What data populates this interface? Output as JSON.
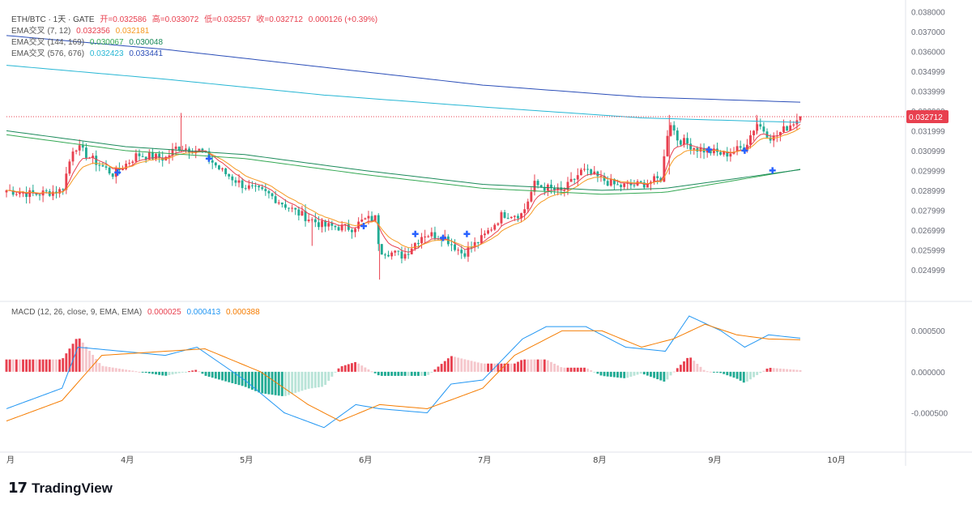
{
  "header": {
    "symbol": "ETH/BTC · 1天 · GATE",
    "open": "开=0.032586",
    "high": "高=0.033072",
    "low": "低=0.032557",
    "close": "收=0.032712",
    "change": "0.000126 (+0.39%)"
  },
  "ema_legends": [
    {
      "label": "EMA交叉 (7, 12)",
      "v1": "0.032356",
      "v2": "0.032181",
      "c1": "#e8404f",
      "c2": "#f59a23"
    },
    {
      "label": "EMA交叉 (144, 169)",
      "v1": "0.030067",
      "v2": "0.030048",
      "c1": "#34a853",
      "c2": "#1b8a5a"
    },
    {
      "label": "EMA交叉 (576, 676)",
      "v1": "0.032423",
      "v2": "0.033441",
      "c1": "#26b6d4",
      "c2": "#2b4eb8"
    }
  ],
  "macd_legend": {
    "label": "MACD (12, 26, close, 9, EMA, EMA)",
    "v1": "0.000025",
    "v2": "0.000413",
    "v3": "0.000388"
  },
  "price_tag": "0.032712",
  "brand": "TradingView",
  "colors": {
    "up": "#e8404f",
    "down": "#22ab94",
    "up_light": "#f5c6cb",
    "down_light": "#b9e4d8",
    "cross_marker": "#2962ff"
  },
  "chart_data": {
    "type": "candlestick",
    "title": "ETH/BTC · 1天 · GATE",
    "x_tick_labels": [
      "月",
      "4月",
      "5月",
      "6月",
      "7月",
      "8月",
      "9月",
      "10月"
    ],
    "price_axis": {
      "ticks": [
        "0.038000",
        "0.037000",
        "0.036000",
        "0.034999",
        "0.033999",
        "0.032999",
        "0.031999",
        "0.030999",
        "0.029999",
        "0.028999",
        "0.027999",
        "0.026999",
        "0.025999",
        "0.024999"
      ],
      "ylim": [
        0.0243,
        0.0381
      ]
    },
    "macd_axis": {
      "ticks": [
        "0.000500",
        "0.000000",
        "-0.000500"
      ],
      "ylim": [
        -0.00088,
        0.00068
      ]
    },
    "candle_keypoints": [
      {
        "t": 0,
        "c": 0.029
      },
      {
        "t": 0.035,
        "c": 0.0288
      },
      {
        "t": 0.07,
        "c": 0.029
      },
      {
        "t": 0.085,
        "c": 0.0313
      },
      {
        "t": 0.11,
        "c": 0.0305
      },
      {
        "t": 0.135,
        "c": 0.0298
      },
      {
        "t": 0.165,
        "c": 0.0308
      },
      {
        "t": 0.2,
        "c": 0.0306
      },
      {
        "t": 0.215,
        "c": 0.0312
      },
      {
        "t": 0.245,
        "c": 0.031
      },
      {
        "t": 0.27,
        "c": 0.03
      },
      {
        "t": 0.3,
        "c": 0.0292
      },
      {
        "t": 0.33,
        "c": 0.0288
      },
      {
        "t": 0.365,
        "c": 0.0279
      },
      {
        "t": 0.4,
        "c": 0.0272
      },
      {
        "t": 0.435,
        "c": 0.0271
      },
      {
        "t": 0.45,
        "c": 0.0275
      },
      {
        "t": 0.465,
        "c": 0.0276
      },
      {
        "t": 0.47,
        "c": 0.026
      },
      {
        "t": 0.5,
        "c": 0.0257
      },
      {
        "t": 0.525,
        "c": 0.0268
      },
      {
        "t": 0.55,
        "c": 0.0267
      },
      {
        "t": 0.575,
        "c": 0.0258
      },
      {
        "t": 0.6,
        "c": 0.0266
      },
      {
        "t": 0.625,
        "c": 0.0278
      },
      {
        "t": 0.65,
        "c": 0.0278
      },
      {
        "t": 0.665,
        "c": 0.0293
      },
      {
        "t": 0.7,
        "c": 0.0289
      },
      {
        "t": 0.725,
        "c": 0.03
      },
      {
        "t": 0.77,
        "c": 0.0292
      },
      {
        "t": 0.8,
        "c": 0.0293
      },
      {
        "t": 0.825,
        "c": 0.0296
      },
      {
        "t": 0.835,
        "c": 0.0326
      },
      {
        "t": 0.845,
        "c": 0.0316
      },
      {
        "t": 0.87,
        "c": 0.0311
      },
      {
        "t": 0.905,
        "c": 0.0308
      },
      {
        "t": 0.93,
        "c": 0.0312
      },
      {
        "t": 0.945,
        "c": 0.0324
      },
      {
        "t": 0.965,
        "c": 0.0316
      },
      {
        "t": 1.0,
        "c": 0.03271
      }
    ],
    "ema_144": [
      [
        0,
        0.0318
      ],
      [
        0.15,
        0.031
      ],
      [
        0.3,
        0.0306
      ],
      [
        0.45,
        0.0298
      ],
      [
        0.6,
        0.0291
      ],
      [
        0.75,
        0.0288
      ],
      [
        0.83,
        0.0289
      ],
      [
        1.0,
        0.03006
      ]
    ],
    "ema_169": [
      [
        0,
        0.032
      ],
      [
        0.15,
        0.0312
      ],
      [
        0.3,
        0.0308
      ],
      [
        0.45,
        0.03
      ],
      [
        0.6,
        0.0293
      ],
      [
        0.75,
        0.029
      ],
      [
        0.83,
        0.0291
      ],
      [
        1.0,
        0.03004
      ]
    ],
    "ema_576": [
      [
        0,
        0.0353
      ],
      [
        0.2,
        0.0346
      ],
      [
        0.4,
        0.0338
      ],
      [
        0.6,
        0.0332
      ],
      [
        0.8,
        0.03265
      ],
      [
        1.0,
        0.03242
      ]
    ],
    "ema_676": [
      [
        0,
        0.0368
      ],
      [
        0.2,
        0.0361
      ],
      [
        0.4,
        0.0352
      ],
      [
        0.6,
        0.0343
      ],
      [
        0.8,
        0.0337
      ],
      [
        1.0,
        0.03344
      ]
    ],
    "macd_line": [
      [
        0,
        -0.00045
      ],
      [
        0.07,
        -0.0002
      ],
      [
        0.09,
        0.0003
      ],
      [
        0.2,
        0.0002
      ],
      [
        0.24,
        0.0003
      ],
      [
        0.3,
        -0.0001
      ],
      [
        0.35,
        -0.0005
      ],
      [
        0.4,
        -0.00068
      ],
      [
        0.44,
        -0.0004
      ],
      [
        0.47,
        -0.00045
      ],
      [
        0.53,
        -0.0005
      ],
      [
        0.56,
        -0.00015
      ],
      [
        0.6,
        -0.0001
      ],
      [
        0.65,
        0.0004
      ],
      [
        0.68,
        0.00055
      ],
      [
        0.73,
        0.00055
      ],
      [
        0.78,
        0.0003
      ],
      [
        0.83,
        0.00025
      ],
      [
        0.86,
        0.00068
      ],
      [
        0.9,
        0.0005
      ],
      [
        0.93,
        0.0003
      ],
      [
        0.96,
        0.00045
      ],
      [
        1.0,
        0.00041
      ]
    ],
    "macd_signal": [
      [
        0,
        -0.0006
      ],
      [
        0.07,
        -0.00035
      ],
      [
        0.12,
        0.0002
      ],
      [
        0.2,
        0.00025
      ],
      [
        0.25,
        0.00028
      ],
      [
        0.32,
        0.0
      ],
      [
        0.38,
        -0.0004
      ],
      [
        0.42,
        -0.0006
      ],
      [
        0.47,
        -0.0004
      ],
      [
        0.53,
        -0.00045
      ],
      [
        0.6,
        -0.0002
      ],
      [
        0.64,
        0.0002
      ],
      [
        0.7,
        0.0005
      ],
      [
        0.75,
        0.0005
      ],
      [
        0.8,
        0.0003
      ],
      [
        0.84,
        0.0004
      ],
      [
        0.88,
        0.00058
      ],
      [
        0.92,
        0.00045
      ],
      [
        0.96,
        0.0004
      ],
      [
        1.0,
        0.00039
      ]
    ],
    "cross_markers": [
      [
        0.14,
        0.0299
      ],
      [
        0.255,
        0.0306
      ],
      [
        0.45,
        0.0272
      ],
      [
        0.515,
        0.0268
      ],
      [
        0.55,
        0.0266
      ],
      [
        0.58,
        0.0268
      ],
      [
        0.885,
        0.03105
      ],
      [
        0.93,
        0.031
      ],
      [
        0.965,
        0.03
      ]
    ]
  }
}
